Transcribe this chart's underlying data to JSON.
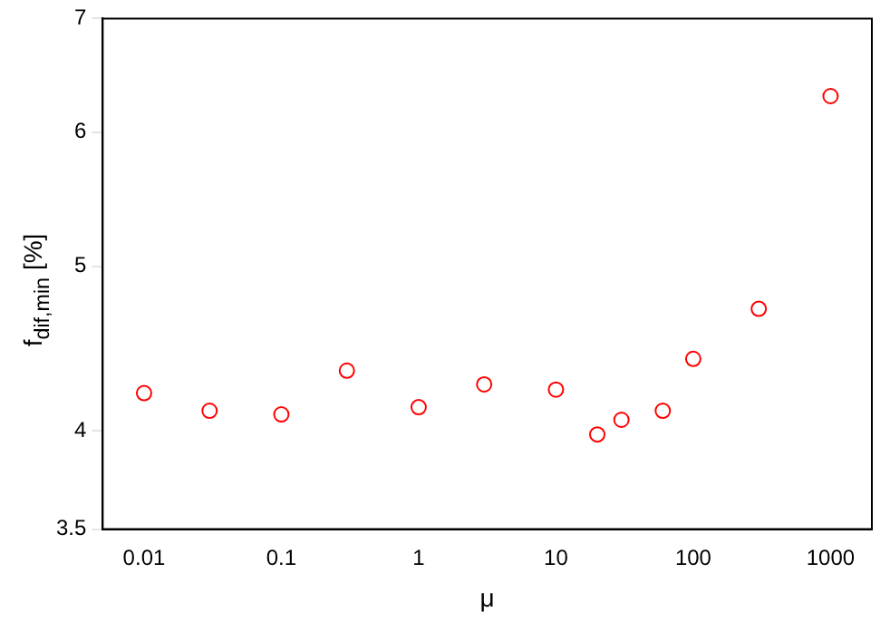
{
  "chart_data": {
    "type": "scatter",
    "xlabel": "μ",
    "ylabel": "f$_{dif,min}$ [%]",
    "log": "xy",
    "grid": false,
    "legend": false,
    "marker": "circle",
    "x": [
      0.01,
      0.03,
      0.1,
      0.3,
      1,
      3,
      10,
      20,
      30,
      60,
      100,
      300,
      1000
    ],
    "series": [
      {
        "color": "#ff0000",
        "values": [
          4.21,
          4.11,
          4.09,
          4.34,
          4.13,
          4.26,
          4.23,
          3.98,
          4.06,
          4.11,
          4.41,
          4.72,
          6.3
        ]
      }
    ],
    "xlim": [
      0.005,
      2000
    ],
    "xticks": [
      0.01,
      0.1,
      1,
      10,
      100,
      1000
    ],
    "ylim": [
      3.5,
      7
    ],
    "yticks": [
      3.5,
      4,
      5,
      6,
      7
    ]
  }
}
